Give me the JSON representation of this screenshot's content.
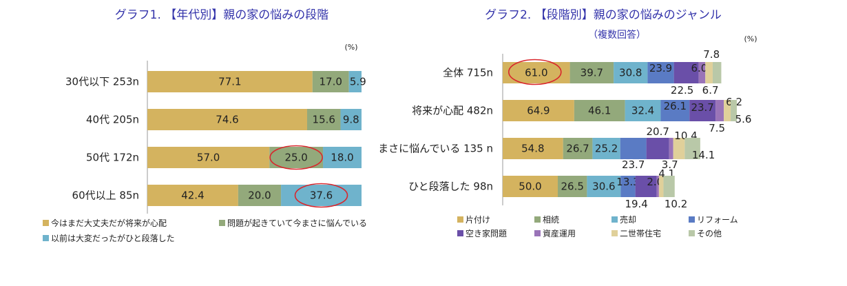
{
  "chart_data": [
    {
      "type": "bar",
      "orientation": "horizontal",
      "stacked": true,
      "title": "グラフ1. 【年代別】親の家の悩みの段階",
      "unit": "(%)",
      "categories": [
        "30代以下 253n",
        "40代 205n",
        "50代 172n",
        "60代以上 85n"
      ],
      "series": [
        {
          "name": "今はまだ大丈夫だが将来が心配",
          "color": "#d4b35f",
          "values": [
            77.1,
            74.6,
            57.0,
            42.4
          ]
        },
        {
          "name": "問題が起きていて今まさに悩んでいる",
          "color": "#93a97b",
          "values": [
            17.0,
            15.6,
            25.0,
            20.0
          ]
        },
        {
          "name": "以前は大変だったがひと段落した",
          "color": "#6fb3cc",
          "values": [
            5.9,
            9.8,
            18.0,
            37.6
          ]
        }
      ],
      "highlighted": [
        {
          "category": "50代 172n",
          "series": 1
        },
        {
          "category": "60代以上 85n",
          "series": 2
        }
      ],
      "xlim": [
        0,
        100
      ],
      "legend": "bottom"
    },
    {
      "type": "bar",
      "orientation": "horizontal",
      "stacked": true,
      "title": "グラフ2. 【段階別】親の家の悩みのジャンル",
      "subtitle": "（複数回答）",
      "unit": "(%)",
      "categories": [
        "全体 715n",
        "将来が心配 482n",
        "まさに悩んでいる 135 n",
        "ひと段落した 98n"
      ],
      "series": [
        {
          "name": "片付け",
          "color": "#d4b35f",
          "values": [
            61.0,
            64.9,
            54.8,
            50.0
          ]
        },
        {
          "name": "相続",
          "color": "#93a97b",
          "values": [
            39.7,
            46.1,
            26.7,
            26.5
          ]
        },
        {
          "name": "売却",
          "color": "#6fb3cc",
          "values": [
            30.8,
            32.4,
            25.2,
            30.6
          ]
        },
        {
          "name": "リフォーム",
          "color": "#5a7bc4",
          "values": [
            23.9,
            26.1,
            23.7,
            13.3
          ]
        },
        {
          "name": "空き家問題",
          "color": "#6a4fa8",
          "values": [
            22.5,
            23.7,
            20.7,
            19.4
          ]
        },
        {
          "name": "資産運用",
          "color": "#9a74b8",
          "values": [
            6.0,
            7.5,
            3.7,
            2.0
          ]
        },
        {
          "name": "二世帯住宅",
          "color": "#e0d09a",
          "values": [
            6.7,
            6.2,
            10.4,
            4.1
          ]
        },
        {
          "name": "その他",
          "color": "#b9c8a8",
          "values": [
            7.8,
            5.6,
            14.1,
            10.2
          ]
        }
      ],
      "highlighted": [
        {
          "category": "全体 715n",
          "series": 0
        }
      ],
      "xlim": [
        0,
        240
      ],
      "legend": "bottom"
    }
  ]
}
